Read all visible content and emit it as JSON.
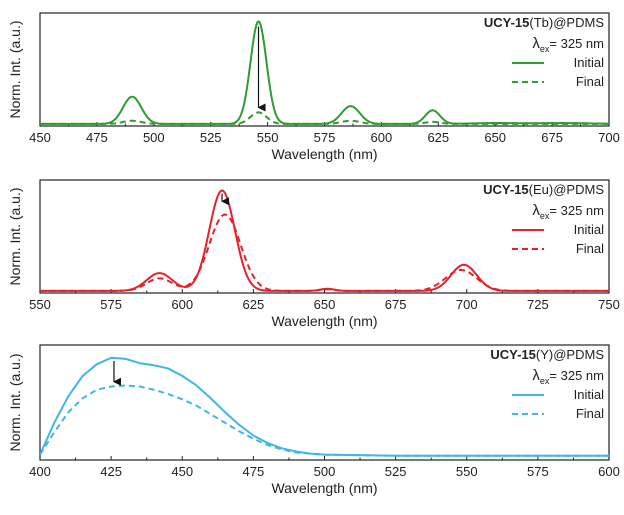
{
  "chart_data": [
    {
      "type": "line",
      "title_bold": "UCY-15",
      "title_rest": "(Tb)@PDMS",
      "excitation_symbol": "λ",
      "excitation_sub": "ex",
      "excitation_value": "= 325 nm",
      "xlabel": "Wavelength (nm)",
      "ylabel": "Norm. Int. (a.u.)",
      "xlim": [
        450,
        700
      ],
      "ylim": [
        0,
        1.08
      ],
      "xticks": [
        450,
        475,
        500,
        525,
        550,
        575,
        600,
        625,
        650,
        675,
        700
      ],
      "color": "#2e9c2e",
      "legend": "top-right",
      "arrow": {
        "x": 546,
        "from": 0.95,
        "to": 0.1
      },
      "series": [
        {
          "name": "Initial",
          "style": "solid",
          "baseline": 0.02,
          "peaks": [
            [
              490.5,
              0.26,
              4
            ],
            [
              546,
              0.98,
              3.5
            ],
            [
              586.5,
              0.17,
              4
            ],
            [
              622.5,
              0.13,
              3.2
            ],
            [
              650,
              0.008,
              10
            ],
            [
              680,
              0.008,
              12
            ]
          ]
        },
        {
          "name": "Final",
          "style": "dashed",
          "baseline": 0.02,
          "peaks": [
            [
              490.5,
              0.03,
              4
            ],
            [
              546,
              0.11,
              3.5
            ],
            [
              586.5,
              0.03,
              4
            ],
            [
              622.5,
              0.02,
              3.2
            ]
          ]
        }
      ]
    },
    {
      "type": "line",
      "title_bold": "UCY-15",
      "title_rest": "(Eu)@PDMS",
      "excitation_symbol": "λ",
      "excitation_sub": "ex",
      "excitation_value": "= 325 nm",
      "xlabel": "Wavelength (nm)",
      "ylabel": "Norm. Int. (a.u.)",
      "xlim": [
        550,
        750
      ],
      "ylim": [
        0,
        1.08
      ],
      "xticks": [
        550,
        575,
        600,
        625,
        650,
        675,
        700,
        725,
        750
      ],
      "color": "#e8202a",
      "legend": "top-right",
      "arrow": {
        "x": 614,
        "from": 0.95,
        "to": 0.8
      },
      "series": [
        {
          "name": "Initial",
          "style": "solid",
          "baseline": 0.02,
          "peaks": [
            [
              592,
              0.17,
              4.5
            ],
            [
              614,
              0.96,
              4.5
            ],
            [
              651,
              0.02,
              2.5
            ],
            [
              699,
              0.25,
              4.5
            ]
          ]
        },
        {
          "name": "Final",
          "style": "dashed",
          "baseline": 0.02,
          "peaks": [
            [
              592,
              0.12,
              4.5
            ],
            [
              615,
              0.73,
              5.5
            ],
            [
              651,
              0.015,
              2.5
            ],
            [
              698,
              0.2,
              5.5
            ]
          ]
        }
      ]
    },
    {
      "type": "line",
      "title_bold": "UCY-15",
      "title_rest": "(Y)@PDMS",
      "excitation_symbol": "λ",
      "excitation_sub": "ex",
      "excitation_value": "= 325 nm",
      "xlabel": "Wavelength (nm)",
      "ylabel": "Norm. Int. (a.u.)",
      "xlim": [
        400,
        600
      ],
      "ylim": [
        0,
        1.08
      ],
      "xticks": [
        400,
        425,
        450,
        475,
        500,
        525,
        550,
        575,
        600
      ],
      "color": "#41b6e6",
      "legend": "top-right",
      "arrow": {
        "x": 426,
        "from": 0.93,
        "to": 0.66
      },
      "series": [
        {
          "name": "Initial",
          "style": "solid",
          "points": [
            [
              400,
              0.05
            ],
            [
              405,
              0.35
            ],
            [
              410,
              0.6
            ],
            [
              415,
              0.79
            ],
            [
              420,
              0.9
            ],
            [
              425,
              0.96
            ],
            [
              430,
              0.95
            ],
            [
              435,
              0.91
            ],
            [
              440,
              0.89
            ],
            [
              445,
              0.86
            ],
            [
              450,
              0.79
            ],
            [
              455,
              0.7
            ],
            [
              460,
              0.58
            ],
            [
              465,
              0.45
            ],
            [
              470,
              0.33
            ],
            [
              475,
              0.23
            ],
            [
              480,
              0.16
            ],
            [
              485,
              0.11
            ],
            [
              490,
              0.08
            ],
            [
              495,
              0.06
            ],
            [
              500,
              0.05
            ],
            [
              525,
              0.04
            ],
            [
              550,
              0.04
            ],
            [
              575,
              0.04
            ],
            [
              600,
              0.04
            ]
          ]
        },
        {
          "name": "Final",
          "style": "dashed",
          "points": [
            [
              400,
              0.05
            ],
            [
              405,
              0.26
            ],
            [
              410,
              0.45
            ],
            [
              415,
              0.58
            ],
            [
              420,
              0.66
            ],
            [
              425,
              0.69
            ],
            [
              430,
              0.7
            ],
            [
              435,
              0.69
            ],
            [
              440,
              0.66
            ],
            [
              445,
              0.62
            ],
            [
              450,
              0.57
            ],
            [
              455,
              0.51
            ],
            [
              460,
              0.43
            ],
            [
              465,
              0.35
            ],
            [
              470,
              0.27
            ],
            [
              475,
              0.2
            ],
            [
              480,
              0.14
            ],
            [
              485,
              0.1
            ],
            [
              490,
              0.07
            ],
            [
              495,
              0.06
            ],
            [
              500,
              0.05
            ],
            [
              525,
              0.04
            ],
            [
              550,
              0.04
            ],
            [
              575,
              0.04
            ],
            [
              600,
              0.04
            ]
          ]
        }
      ]
    }
  ]
}
